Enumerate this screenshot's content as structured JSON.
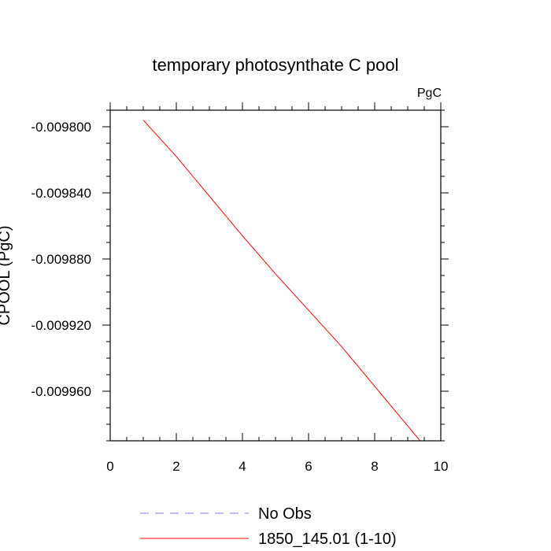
{
  "chart_data": {
    "type": "line",
    "title": "temporary photosynthate C pool",
    "units_label": "PgC",
    "xlabel": "",
    "ylabel": "CPOOL  (PgC)",
    "xlim": [
      0,
      10
    ],
    "ylim": [
      -0.00999,
      -0.00979
    ],
    "x_ticks": [
      0,
      2,
      4,
      6,
      8,
      10
    ],
    "x_tick_labels": [
      "0",
      "2",
      "4",
      "6",
      "8",
      "10"
    ],
    "y_ticks": [
      -0.0098,
      -0.00984,
      -0.00988,
      -0.00992,
      -0.00996
    ],
    "y_tick_labels": [
      "-0.009800",
      "-0.009840",
      "-0.009880",
      "-0.009920",
      "-0.009960"
    ],
    "grid": false,
    "legend_position": "bottom",
    "series": [
      {
        "name": "No Obs",
        "color": "#8080ff",
        "dashed": true,
        "x": [],
        "y": []
      },
      {
        "name": "1850_145.01 (1-10)",
        "color": "#ff0000",
        "dashed": false,
        "x": [
          1,
          2,
          3,
          4,
          5,
          6,
          7,
          8,
          9,
          10
        ],
        "y": [
          -0.009796,
          -0.009818,
          -0.009842,
          -0.009866,
          -0.009889,
          -0.009911,
          -0.009933,
          -0.009957,
          -0.009981,
          -0.010005
        ]
      }
    ]
  }
}
